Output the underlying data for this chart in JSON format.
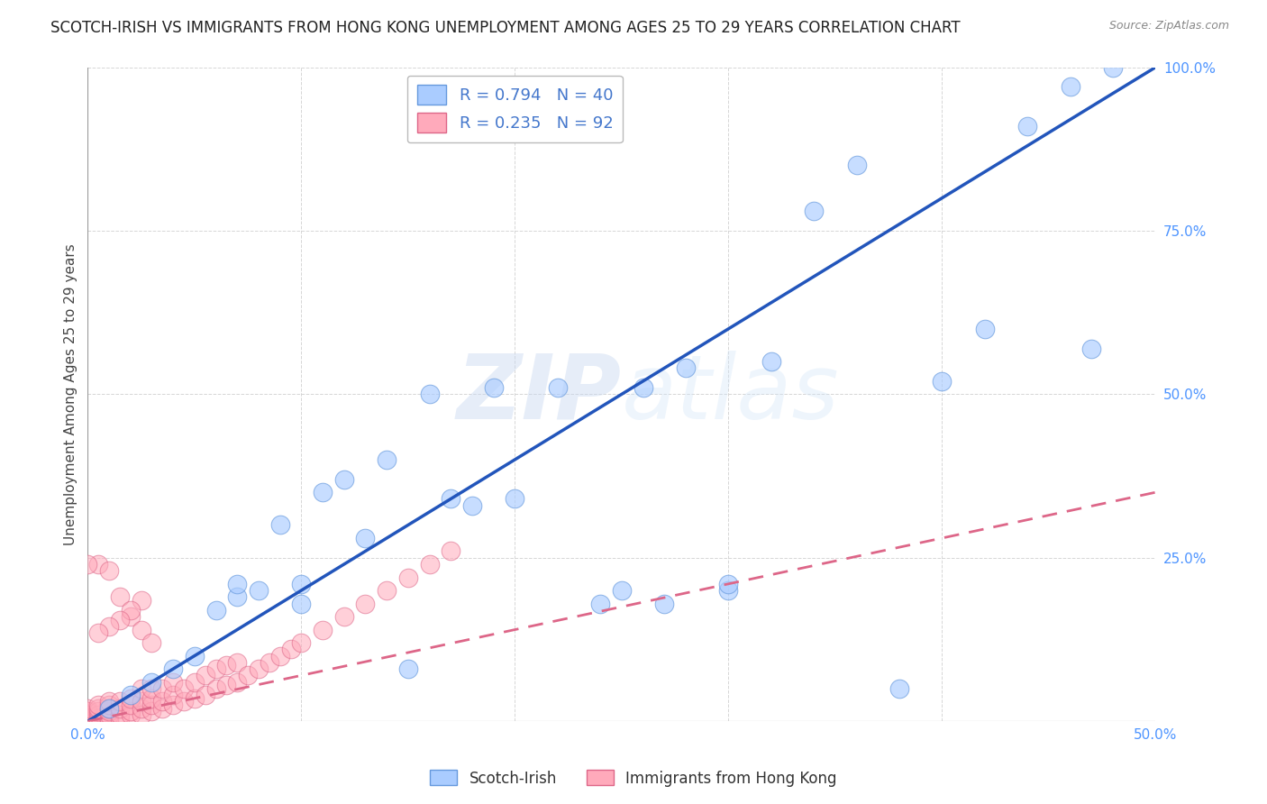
{
  "title": "SCOTCH-IRISH VS IMMIGRANTS FROM HONG KONG UNEMPLOYMENT AMONG AGES 25 TO 29 YEARS CORRELATION CHART",
  "source": "Source: ZipAtlas.com",
  "ylabel": "Unemployment Among Ages 25 to 29 years",
  "xlim": [
    0,
    0.5
  ],
  "ylim": [
    0,
    1.0
  ],
  "xticks": [
    0.0,
    0.1,
    0.2,
    0.3,
    0.4,
    0.5
  ],
  "xticklabels": [
    "0.0%",
    "",
    "",
    "",
    "",
    "50.0%"
  ],
  "yticks": [
    0.0,
    0.25,
    0.5,
    0.75,
    1.0
  ],
  "yticklabels": [
    "",
    "25.0%",
    "50.0%",
    "75.0%",
    "100.0%"
  ],
  "tick_color": "#4d94ff",
  "background_color": "#ffffff",
  "grid_color": "#cccccc",
  "watermark": "ZIPatlas",
  "scotch_irish_R": 0.794,
  "scotch_irish_N": 40,
  "hk_R": 0.235,
  "hk_N": 92,
  "scotch_irish_color": "#aaccff",
  "scotch_irish_edge_color": "#6699dd",
  "scotch_irish_line_color": "#2255bb",
  "hk_color": "#ffaabb",
  "hk_edge_color": "#dd6688",
  "hk_line_color": "#dd6688",
  "scotch_irish_x": [
    0.01,
    0.02,
    0.03,
    0.04,
    0.05,
    0.06,
    0.07,
    0.07,
    0.08,
    0.09,
    0.1,
    0.1,
    0.11,
    0.12,
    0.13,
    0.14,
    0.15,
    0.16,
    0.17,
    0.18,
    0.19,
    0.2,
    0.22,
    0.24,
    0.25,
    0.26,
    0.27,
    0.28,
    0.3,
    0.3,
    0.32,
    0.34,
    0.36,
    0.38,
    0.4,
    0.42,
    0.44,
    0.46,
    0.47,
    0.48
  ],
  "scotch_irish_y": [
    0.02,
    0.04,
    0.06,
    0.08,
    0.1,
    0.17,
    0.19,
    0.21,
    0.2,
    0.3,
    0.18,
    0.21,
    0.35,
    0.37,
    0.28,
    0.4,
    0.08,
    0.5,
    0.34,
    0.33,
    0.51,
    0.34,
    0.51,
    0.18,
    0.2,
    0.51,
    0.18,
    0.54,
    0.2,
    0.21,
    0.55,
    0.78,
    0.85,
    0.05,
    0.52,
    0.6,
    0.91,
    0.97,
    0.57,
    1.0
  ],
  "hk_x": [
    0.0,
    0.0,
    0.0,
    0.0,
    0.0,
    0.0,
    0.0,
    0.0,
    0.0,
    0.0,
    0.0,
    0.0,
    0.0,
    0.0,
    0.0,
    0.0,
    0.0,
    0.0,
    0.0,
    0.0,
    0.005,
    0.005,
    0.005,
    0.005,
    0.005,
    0.005,
    0.01,
    0.01,
    0.01,
    0.01,
    0.01,
    0.01,
    0.01,
    0.015,
    0.015,
    0.015,
    0.015,
    0.02,
    0.02,
    0.02,
    0.02,
    0.025,
    0.025,
    0.025,
    0.025,
    0.03,
    0.03,
    0.03,
    0.03,
    0.035,
    0.035,
    0.035,
    0.04,
    0.04,
    0.04,
    0.045,
    0.045,
    0.05,
    0.05,
    0.055,
    0.055,
    0.06,
    0.06,
    0.065,
    0.065,
    0.07,
    0.07,
    0.075,
    0.08,
    0.085,
    0.09,
    0.095,
    0.1,
    0.11,
    0.12,
    0.13,
    0.14,
    0.15,
    0.16,
    0.17,
    0.005,
    0.01,
    0.015,
    0.02,
    0.025,
    0.03,
    0.025,
    0.02,
    0.015,
    0.01,
    0.005,
    0.0
  ],
  "hk_y": [
    0.0,
    0.0,
    0.0,
    0.0,
    0.0,
    0.0,
    0.0,
    0.0,
    0.0,
    0.0,
    0.0,
    0.0,
    0.0,
    0.005,
    0.005,
    0.01,
    0.01,
    0.015,
    0.015,
    0.02,
    0.0,
    0.005,
    0.01,
    0.015,
    0.02,
    0.025,
    0.0,
    0.005,
    0.01,
    0.015,
    0.02,
    0.025,
    0.03,
    0.005,
    0.01,
    0.02,
    0.03,
    0.01,
    0.015,
    0.025,
    0.035,
    0.01,
    0.02,
    0.03,
    0.05,
    0.015,
    0.025,
    0.035,
    0.05,
    0.02,
    0.03,
    0.05,
    0.025,
    0.04,
    0.06,
    0.03,
    0.05,
    0.035,
    0.06,
    0.04,
    0.07,
    0.05,
    0.08,
    0.055,
    0.085,
    0.06,
    0.09,
    0.07,
    0.08,
    0.09,
    0.1,
    0.11,
    0.12,
    0.14,
    0.16,
    0.18,
    0.2,
    0.22,
    0.24,
    0.26,
    0.24,
    0.23,
    0.19,
    0.16,
    0.14,
    0.12,
    0.185,
    0.17,
    0.155,
    0.145,
    0.135,
    0.24
  ],
  "legend_label_1": "Scotch-Irish",
  "legend_label_2": "Immigrants from Hong Kong",
  "title_fontsize": 12,
  "axis_label_fontsize": 11,
  "tick_fontsize": 11,
  "legend_fontsize": 13
}
